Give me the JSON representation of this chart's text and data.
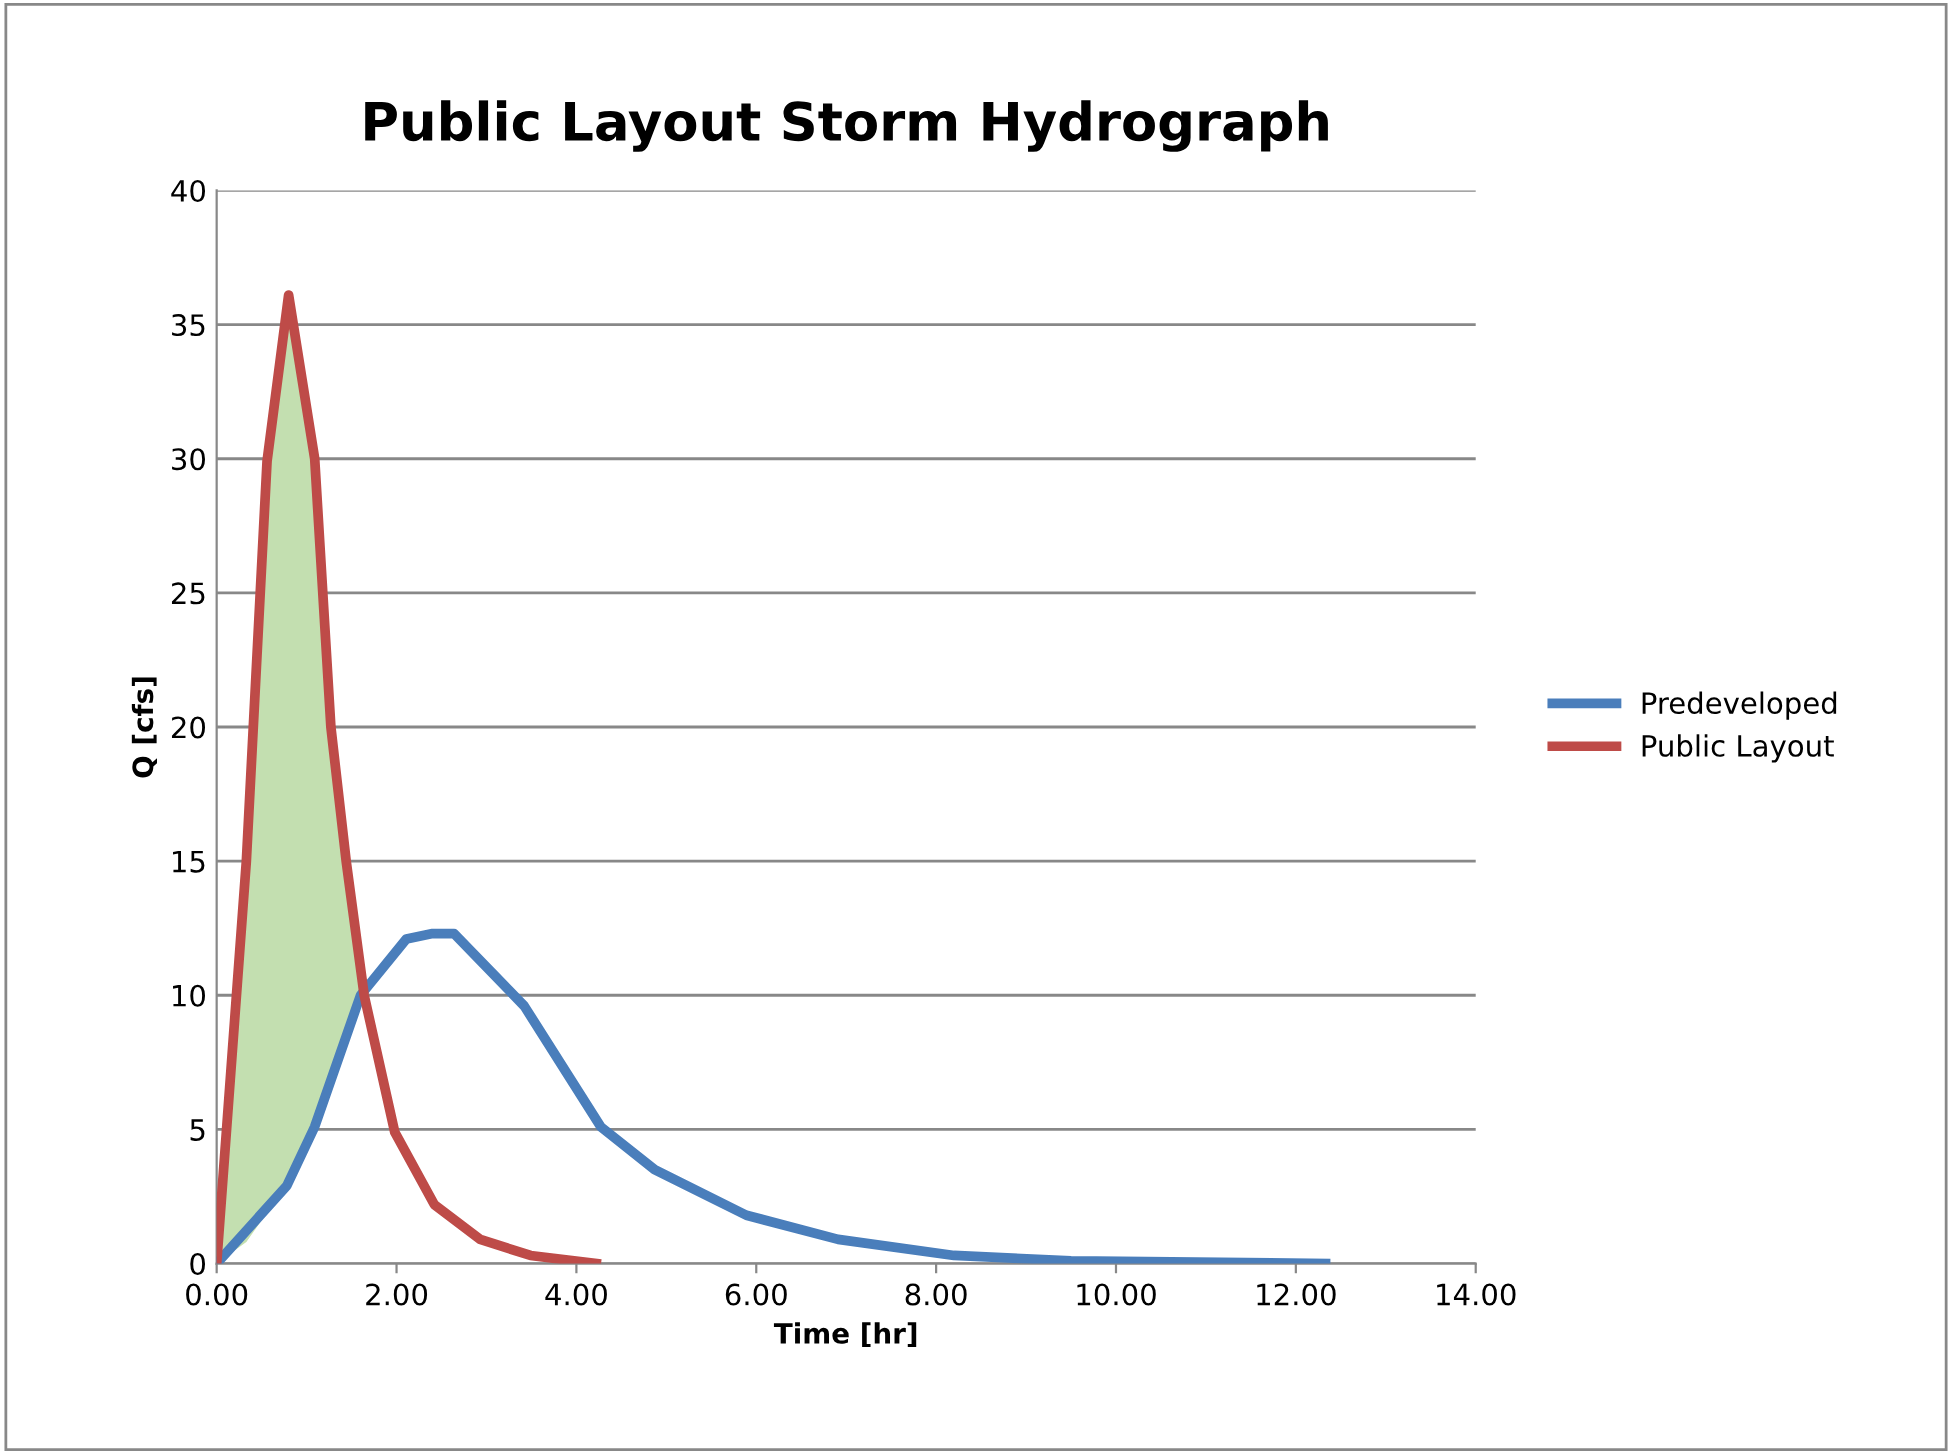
{
  "chart_data": {
    "type": "line",
    "title": "Public Layout Storm Hydrograph",
    "xlabel": "Time [hr]",
    "ylabel": "Q [cfs]",
    "xlim": [
      0,
      14
    ],
    "xticks": [
      {
        "value": 0,
        "label": "0.00"
      },
      {
        "value": 2,
        "label": "2.00"
      },
      {
        "value": 4,
        "label": "4.00"
      },
      {
        "value": 6,
        "label": "6.00"
      },
      {
        "value": 8,
        "label": "8.00"
      },
      {
        "value": 10,
        "label": "10.00"
      },
      {
        "value": 12,
        "label": "12.00"
      },
      {
        "value": 14,
        "label": "14.00"
      }
    ],
    "ylim": [
      0,
      40
    ],
    "yticks": [
      0,
      5,
      10,
      15,
      20,
      25,
      30,
      35,
      40
    ],
    "grid": "y",
    "legend": "right",
    "marker": "none",
    "line_style": "solid",
    "series": [
      {
        "name": "Predeveloped",
        "color": "#4a7ebb",
        "x": [
          0,
          0.78,
          1.09,
          1.6,
          2.11,
          2.4,
          2.64,
          3.42,
          3.93,
          4.27,
          4.87,
          5.89,
          6.91,
          8.2,
          9.5,
          12.33
        ],
        "values": [
          0,
          2.9,
          5.1,
          10,
          12.1,
          12.3,
          12.3,
          9.6,
          6.9,
          5.1,
          3.5,
          1.8,
          0.9,
          0.3,
          0.1,
          0
        ]
      },
      {
        "name": "Public Layout",
        "color": "#be4b48",
        "x": [
          0,
          0.33,
          0.56,
          0.8,
          1.09,
          1.27,
          1.44,
          1.64,
          1.98,
          2.42,
          2.93,
          3.49,
          4.22
        ],
        "values": [
          0,
          15,
          29.9,
          36.1,
          30,
          20,
          15,
          10,
          4.9,
          2.2,
          0.9,
          0.3,
          0
        ],
        "lower": [
          0,
          0.8,
          1.9,
          3.0,
          5.1,
          7,
          8.6,
          10,
          null,
          null,
          null,
          null,
          null
        ],
        "upper": [
          0,
          15,
          29.9,
          36.1,
          30,
          20,
          15,
          10,
          null,
          null,
          null,
          null,
          null
        ]
      }
    ]
  }
}
